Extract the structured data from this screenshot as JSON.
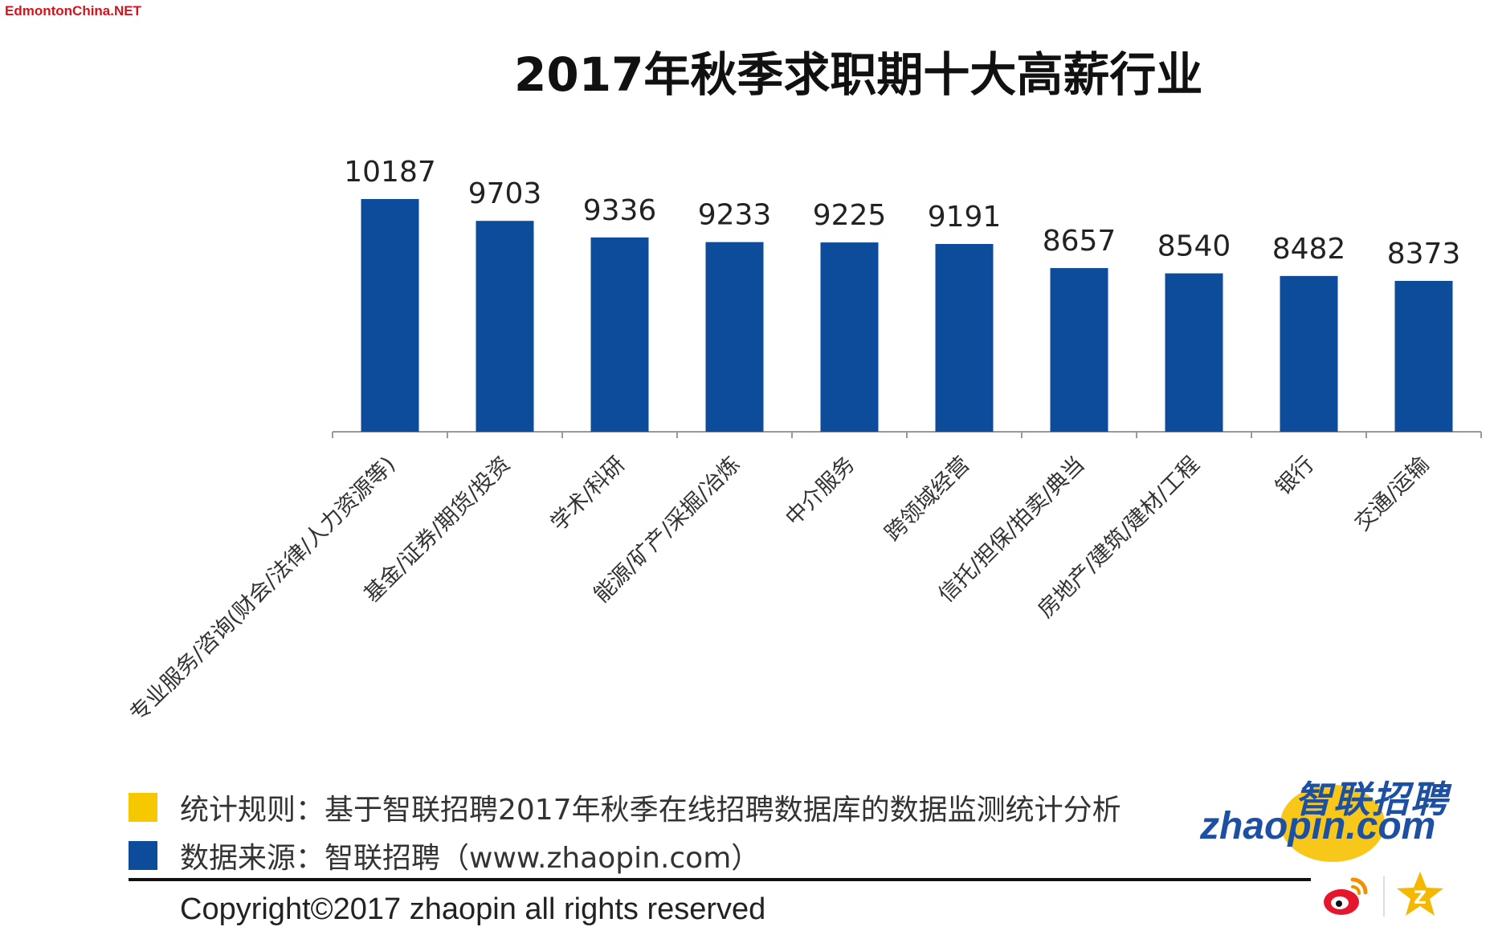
{
  "watermark": "EdmontonChina.NET",
  "title": "2017年秋季求职期十大高薪行业",
  "chart_data": {
    "type": "bar",
    "title": "2017年秋季求职期十大高薪行业",
    "xlabel": "",
    "ylabel": "",
    "ylim": [
      0,
      10187
    ],
    "grid": false,
    "color": "#0d4c9b",
    "categories": [
      "专业服务/咨询(财会/法律/人力资源等)",
      "基金/证券/期货/投资",
      "学术/科研",
      "能源/矿产/采掘/冶炼",
      "中介服务",
      "跨领域经营",
      "信托/担保/拍卖/典当",
      "房地产/建筑/建材/工程",
      "银行",
      "交通/运输"
    ],
    "values": [
      10187,
      9703,
      9336,
      9233,
      9225,
      9191,
      8657,
      8540,
      8482,
      8373
    ]
  },
  "footer": {
    "rule_label": "统计规则：基于智联招聘2017年秋季在线招聘数据库的数据监测统计分析",
    "source_label": "数据来源：智联招聘（www.zhaopin.com）",
    "rule_color": "#f5c800",
    "source_color": "#0d4c9b",
    "copyright": "Copyright©2017 zhaopin all rights reserved"
  },
  "logo": {
    "cn": "智联招聘",
    "en": "zhaopin.com"
  },
  "icons": [
    "weibo-icon",
    "star-icon"
  ]
}
